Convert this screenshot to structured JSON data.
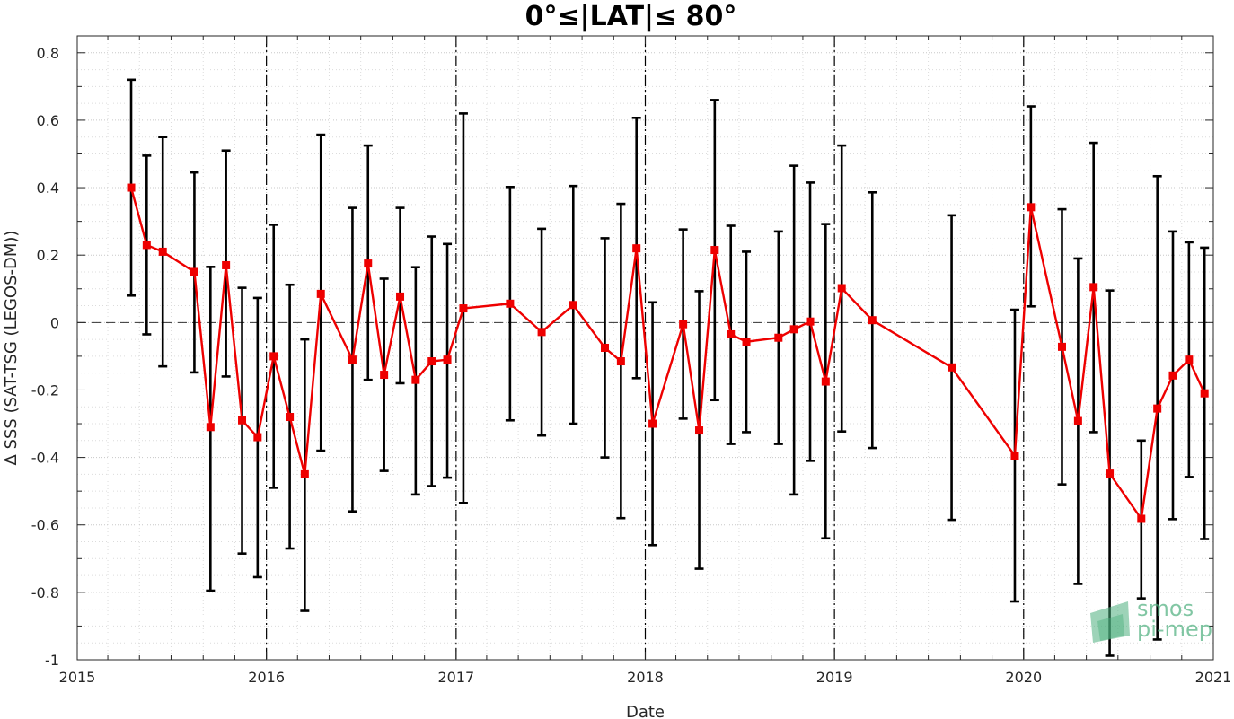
{
  "chart_data": {
    "type": "line",
    "title": "0°≤|LAT|≤ 80°",
    "xlabel": "Date",
    "ylabel": "Δ SSS (SAT-TSG (LEGOS-DM))",
    "xlim": [
      "2015-01-01",
      "2021-01-01"
    ],
    "ylim": [
      -1,
      0.85
    ],
    "x_ticks": [
      "2015",
      "2016",
      "2017",
      "2018",
      "2019",
      "2020",
      "2021"
    ],
    "y_ticks": [
      "0.8",
      "0.6",
      "0.4",
      "0.2",
      "0",
      "-0.2",
      "-0.4",
      "-0.6",
      "-0.8",
      "-1"
    ],
    "grid": true,
    "year_boundary_lines": [
      "2016",
      "2017",
      "2018",
      "2019",
      "2020"
    ],
    "zero_line": true,
    "colors": {
      "series": "#ee0000",
      "error_bars": "#000000",
      "logo": "#4caf7d"
    },
    "logo": {
      "line1": "smos",
      "line2": "pi-mep"
    },
    "series": [
      {
        "x": [
          "2015-04-15",
          "2015-05-15",
          "2015-06-15",
          "2015-08-15",
          "2015-09-15",
          "2015-10-15",
          "2015-11-15",
          "2015-12-15",
          "2016-01-15",
          "2016-02-15",
          "2016-03-15",
          "2016-04-15",
          "2016-06-15",
          "2016-07-15",
          "2016-08-15",
          "2016-09-15",
          "2016-10-15",
          "2016-11-15",
          "2016-12-15",
          "2017-01-15",
          "2017-04-15",
          "2017-06-15",
          "2017-08-15",
          "2017-10-15",
          "2017-11-15",
          "2017-12-15",
          "2018-01-15",
          "2018-03-15",
          "2018-04-15",
          "2018-05-15",
          "2018-06-15",
          "2018-07-15",
          "2018-09-15",
          "2018-10-15",
          "2018-11-15",
          "2018-12-15",
          "2019-01-15",
          "2019-03-15",
          "2019-08-15",
          "2019-12-15",
          "2020-01-15",
          "2020-03-15",
          "2020-04-15",
          "2020-05-15",
          "2020-06-15",
          "2020-08-15",
          "2020-09-15",
          "2020-10-15",
          "2020-11-15",
          "2020-12-15"
        ],
        "y": [
          0.4,
          0.23,
          0.21,
          0.15,
          -0.31,
          0.17,
          -0.29,
          -0.34,
          -0.1,
          -0.28,
          -0.45,
          0.085,
          -0.11,
          0.175,
          -0.155,
          0.077,
          -0.17,
          -0.115,
          -0.11,
          0.042,
          0.056,
          -0.028,
          0.052,
          -0.075,
          -0.115,
          0.22,
          -0.3,
          -0.005,
          -0.32,
          0.215,
          -0.035,
          -0.057,
          -0.045,
          -0.02,
          0.003,
          -0.175,
          0.102,
          0.007,
          -0.133,
          -0.395,
          0.342,
          -0.072,
          -0.292,
          0.105,
          -0.448,
          -0.582,
          -0.255,
          -0.157,
          -0.11,
          -0.21
        ],
        "upper": [
          0.72,
          0.495,
          0.55,
          0.445,
          0.165,
          0.51,
          0.103,
          0.073,
          0.29,
          0.112,
          -0.05,
          0.557,
          0.34,
          0.525,
          0.13,
          0.34,
          0.164,
          0.255,
          0.233,
          0.62,
          0.402,
          0.278,
          0.405,
          0.25,
          0.352,
          0.607,
          0.06,
          0.276,
          0.093,
          0.66,
          0.287,
          0.21,
          0.27,
          0.465,
          0.415,
          0.292,
          0.525,
          0.386,
          0.318,
          0.038,
          0.641,
          0.336,
          0.19,
          0.533,
          0.095,
          -0.35,
          0.434,
          0.27,
          0.238,
          0.222
        ],
        "lower": [
          0.08,
          -0.035,
          -0.13,
          -0.148,
          -0.795,
          -0.16,
          -0.685,
          -0.755,
          -0.49,
          -0.67,
          -0.855,
          -0.38,
          -0.56,
          -0.17,
          -0.44,
          -0.18,
          -0.51,
          -0.485,
          -0.46,
          -0.535,
          -0.29,
          -0.335,
          -0.3,
          -0.4,
          -0.58,
          -0.165,
          -0.66,
          -0.285,
          -0.73,
          -0.23,
          -0.36,
          -0.325,
          -0.36,
          -0.51,
          -0.41,
          -0.64,
          -0.323,
          -0.372,
          -0.585,
          -0.827,
          0.048,
          -0.48,
          -0.775,
          -0.325,
          -0.988,
          -0.818,
          -0.94,
          -0.583,
          -0.458,
          -0.642
        ]
      }
    ]
  }
}
